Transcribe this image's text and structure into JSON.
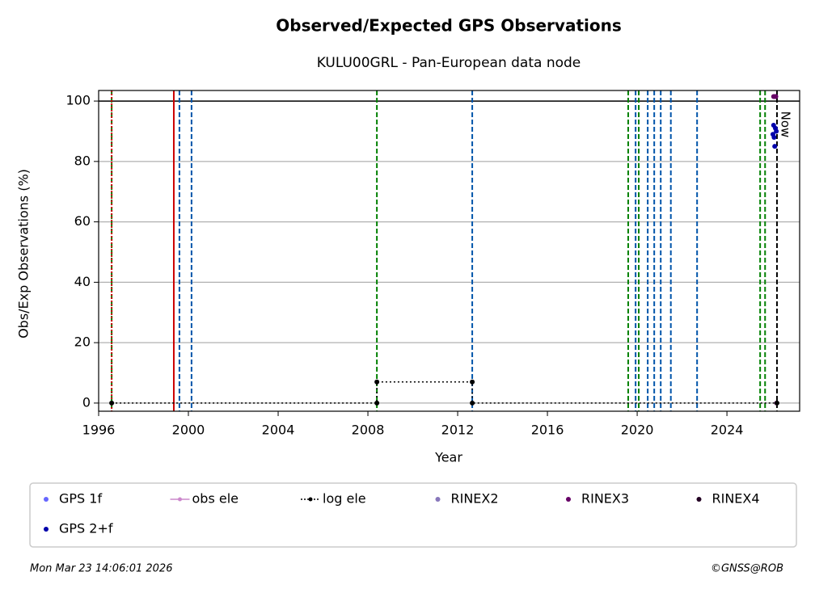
{
  "chart_data": {
    "type": "scatter",
    "title": "Observed/Expected GPS Observations",
    "subtitle": "KULU00GRL - Pan-European data node",
    "x_label": "Year",
    "y_label": "Obs/Exp Observations (%)",
    "xlim": [
      1996,
      2027.24
    ],
    "ylim": [
      -2.7,
      103.5
    ],
    "xticks": [
      1996,
      2000,
      2004,
      2008,
      2012,
      2016,
      2020,
      2024
    ],
    "yticks": [
      0,
      20,
      40,
      60,
      80,
      100
    ],
    "grid": true,
    "reference_line": 100,
    "vlines": [
      {
        "x": 1996.58,
        "color": "#008000",
        "dash": "dashed"
      },
      {
        "x": 1996.58,
        "color": "#cc0000",
        "dash": "dotted"
      },
      {
        "x": 1999.35,
        "color": "#cc0000",
        "dash": "solid"
      },
      {
        "x": 1999.6,
        "color": "#0055aa",
        "dash": "dashed"
      },
      {
        "x": 2000.14,
        "color": "#0055aa",
        "dash": "dashed"
      },
      {
        "x": 2008.4,
        "color": "#008000",
        "dash": "dashed"
      },
      {
        "x": 2012.65,
        "color": "#0055aa",
        "dash": "dashed"
      },
      {
        "x": 2019.6,
        "color": "#008000",
        "dash": "dashed"
      },
      {
        "x": 2019.93,
        "color": "#0055aa",
        "dash": "dashed"
      },
      {
        "x": 2020.07,
        "color": "#008000",
        "dash": "dashed"
      },
      {
        "x": 2020.47,
        "color": "#0055aa",
        "dash": "dashed"
      },
      {
        "x": 2020.76,
        "color": "#0055aa",
        "dash": "dashed"
      },
      {
        "x": 2021.05,
        "color": "#0055aa",
        "dash": "dashed"
      },
      {
        "x": 2021.5,
        "color": "#0055aa",
        "dash": "dashed"
      },
      {
        "x": 2022.67,
        "color": "#0055aa",
        "dash": "dashed"
      },
      {
        "x": 2025.48,
        "color": "#008000",
        "dash": "dashed"
      },
      {
        "x": 2025.7,
        "color": "#008000",
        "dash": "dashed"
      },
      {
        "x": 2026.23,
        "color": "#000000",
        "dash": "dashed"
      }
    ],
    "now_label": "Now",
    "now_x": 2026.23,
    "series": [
      {
        "name": "GPS 1f",
        "color": "#6666ff",
        "mode": "markers",
        "x": [],
        "values": []
      },
      {
        "name": "obs ele",
        "color": "#cc88cc",
        "mode": "lines+markers",
        "x": [
          2026.2
        ],
        "values": [
          0
        ]
      },
      {
        "name": "log ele",
        "color": "#000000",
        "mode": "lines+markers",
        "x": [
          1996.58,
          2008.4,
          2008.4,
          2012.65,
          2012.65,
          2026.23
        ],
        "values": [
          0,
          0,
          7,
          7,
          0,
          0
        ]
      },
      {
        "name": "RINEX2",
        "color": "#8877bb",
        "mode": "markers",
        "x": [],
        "values": []
      },
      {
        "name": "RINEX3",
        "color": "#660066",
        "mode": "markers",
        "x": [
          2026.08,
          2026.13,
          2026.18
        ],
        "values": [
          101.5,
          101.5,
          101.5
        ]
      },
      {
        "name": "RINEX4",
        "color": "#220022",
        "mode": "markers",
        "x": [],
        "values": []
      },
      {
        "name": "GPS 2+f",
        "color": "#0000aa",
        "mode": "markers",
        "x": [
          2026.05,
          2026.08,
          2026.1,
          2026.13,
          2026.16,
          2026.2
        ],
        "values": [
          89,
          92,
          88,
          85,
          91,
          90
        ]
      }
    ],
    "timestamp": "Mon Mar 23 14:06:01 2026",
    "credit": "©GNSS@ROB"
  }
}
